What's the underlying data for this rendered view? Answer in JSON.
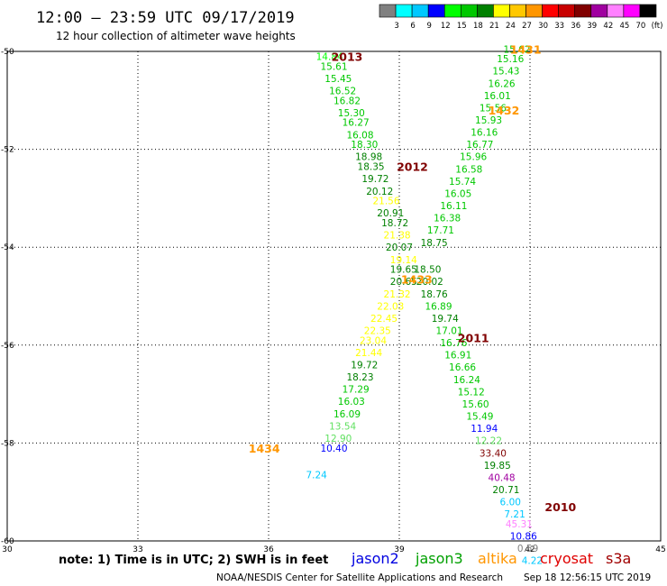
{
  "title": "12:00 – 23:59 UTC 09/17/2019",
  "subtitle": "12 hour collection of altimeter wave heights",
  "scale": {
    "labels": [
      "3",
      "6",
      "9",
      "12",
      "15",
      "18",
      "21",
      "24",
      "27",
      "30",
      "33",
      "36",
      "39",
      "42",
      "45",
      "70",
      "(ft)"
    ],
    "colors": [
      "#808080",
      "#00ffff",
      "#00c8ff",
      "#0000ff",
      "#00ff00",
      "#00c800",
      "#008000",
      "#ffff00",
      "#ffc800",
      "#ff9600",
      "#ff0000",
      "#c80000",
      "#800000",
      "#a000a0",
      "#ff80ff",
      "#ff00ff",
      "#000000"
    ]
  },
  "footer": {
    "note": "note: 1) Time is in UTC; 2) SWH is in feet",
    "credit": "NOAA/NESDIS Center for Satellite Applications and Research",
    "timestamp": "Sep 18 12:56:15 UTC 2019"
  },
  "satellites": [
    {
      "name": "jason2",
      "color": "#0000e0"
    },
    {
      "name": "jason3",
      "color": "#00a000"
    },
    {
      "name": "altika",
      "color": "#ff9600"
    },
    {
      "name": "cryosat",
      "color": "#e00000"
    },
    {
      "name": "s3a",
      "color": "#a00000"
    }
  ],
  "chart_data": {
    "type": "scatter",
    "xlim": [
      30,
      45
    ],
    "ylim": [
      -60,
      -50
    ],
    "x_ticks": [
      30,
      33,
      36,
      39,
      42,
      45
    ],
    "y_ticks": [
      -50,
      -52,
      -54,
      -56,
      -58,
      -60
    ],
    "x_tick_labels": [
      "30",
      "33",
      "36",
      "39",
      "42",
      "45"
    ],
    "y_tick_labels": [
      "-50",
      "-52",
      "-54",
      "-56",
      "-58",
      "-60"
    ],
    "grid": true,
    "time_labels": [
      {
        "text": "2013",
        "lon": 37.8,
        "lat": -50.1,
        "color": "#800000"
      },
      {
        "text": "2012",
        "lon": 39.3,
        "lat": -52.35,
        "color": "#800000"
      },
      {
        "text": "2011",
        "lon": 40.7,
        "lat": -55.85,
        "color": "#800000"
      },
      {
        "text": "2010",
        "lon": 42.7,
        "lat": -59.3,
        "color": "#800000"
      },
      {
        "text": "1431",
        "lon": 41.9,
        "lat": -49.95,
        "color": "#ff9600"
      },
      {
        "text": "1432",
        "lon": 41.4,
        "lat": -51.2,
        "color": "#ff9600"
      },
      {
        "text": "1433",
        "lon": 39.4,
        "lat": -54.65,
        "color": "#ff9600"
      },
      {
        "text": "1434",
        "lon": 35.9,
        "lat": -58.1,
        "color": "#ff9600"
      }
    ],
    "points": [
      {
        "lon": 37.4,
        "lat": -50.1,
        "swh": "14.84",
        "color": "#00ff00"
      },
      {
        "lon": 37.5,
        "lat": -50.3,
        "swh": "15.61",
        "color": "#00c800"
      },
      {
        "lon": 37.6,
        "lat": -50.55,
        "swh": "15.45",
        "color": "#00c800"
      },
      {
        "lon": 37.7,
        "lat": -50.8,
        "swh": "16.52",
        "color": "#00c800"
      },
      {
        "lon": 37.8,
        "lat": -51.0,
        "swh": "16.82",
        "color": "#00c800"
      },
      {
        "lon": 37.9,
        "lat": -51.25,
        "swh": "15.30",
        "color": "#00c800"
      },
      {
        "lon": 38.0,
        "lat": -51.45,
        "swh": "16.27",
        "color": "#00c800"
      },
      {
        "lon": 38.1,
        "lat": -51.7,
        "swh": "16.08",
        "color": "#00c800"
      },
      {
        "lon": 38.2,
        "lat": -51.9,
        "swh": "18.30",
        "color": "#00c800"
      },
      {
        "lon": 38.3,
        "lat": -52.15,
        "swh": "18.98",
        "color": "#008000"
      },
      {
        "lon": 38.35,
        "lat": -52.35,
        "swh": "18.35",
        "color": "#008000"
      },
      {
        "lon": 38.45,
        "lat": -52.6,
        "swh": "19.72",
        "color": "#008000"
      },
      {
        "lon": 38.55,
        "lat": -52.85,
        "swh": "20.12",
        "color": "#008000"
      },
      {
        "lon": 38.7,
        "lat": -53.05,
        "swh": "21.56",
        "color": "#ffff00"
      },
      {
        "lon": 38.8,
        "lat": -53.3,
        "swh": "20.91",
        "color": "#008000"
      },
      {
        "lon": 38.9,
        "lat": -53.5,
        "swh": "18.72",
        "color": "#008000"
      },
      {
        "lon": 38.95,
        "lat": -53.75,
        "swh": "21.38",
        "color": "#ffff00"
      },
      {
        "lon": 39.0,
        "lat": -54.0,
        "swh": "20.07",
        "color": "#008000"
      },
      {
        "lon": 39.1,
        "lat": -54.25,
        "swh": "19.14",
        "color": "#ffff00"
      },
      {
        "lon": 39.1,
        "lat": -54.45,
        "swh": "19.65",
        "color": "#008000"
      },
      {
        "lon": 39.1,
        "lat": -54.7,
        "swh": "20.65",
        "color": "#008000"
      },
      {
        "lon": 38.95,
        "lat": -54.95,
        "swh": "21.32",
        "color": "#ffff00"
      },
      {
        "lon": 38.8,
        "lat": -55.2,
        "swh": "22.03",
        "color": "#ffff00"
      },
      {
        "lon": 38.65,
        "lat": -55.45,
        "swh": "22.45",
        "color": "#ffff00"
      },
      {
        "lon": 38.5,
        "lat": -55.7,
        "swh": "22.35",
        "color": "#ffff00"
      },
      {
        "lon": 38.4,
        "lat": -55.9,
        "swh": "23.04",
        "color": "#ffff00"
      },
      {
        "lon": 38.3,
        "lat": -56.15,
        "swh": "21.44",
        "color": "#ffff00"
      },
      {
        "lon": 38.2,
        "lat": -56.4,
        "swh": "19.72",
        "color": "#008000"
      },
      {
        "lon": 38.1,
        "lat": -56.65,
        "swh": "18.23",
        "color": "#008000"
      },
      {
        "lon": 38.0,
        "lat": -56.9,
        "swh": "17.29",
        "color": "#00c800"
      },
      {
        "lon": 37.9,
        "lat": -57.15,
        "swh": "16.03",
        "color": "#00c800"
      },
      {
        "lon": 37.8,
        "lat": -57.4,
        "swh": "16.09",
        "color": "#00c800"
      },
      {
        "lon": 37.7,
        "lat": -57.65,
        "swh": "13.54",
        "color": "#60e060"
      },
      {
        "lon": 37.6,
        "lat": -57.9,
        "swh": "12.90",
        "color": "#60e060"
      },
      {
        "lon": 37.5,
        "lat": -58.1,
        "swh": "10.40",
        "color": "#0000ff"
      },
      {
        "lon": 37.1,
        "lat": -58.65,
        "swh": "7.24",
        "color": "#00c8ff"
      },
      {
        "lon": 41.7,
        "lat": -49.95,
        "swh": "15.62",
        "color": "#00c800"
      },
      {
        "lon": 41.55,
        "lat": -50.15,
        "swh": "15.16",
        "color": "#00c800"
      },
      {
        "lon": 41.45,
        "lat": -50.4,
        "swh": "15.43",
        "color": "#00c800"
      },
      {
        "lon": 41.35,
        "lat": -50.65,
        "swh": "16.26",
        "color": "#00c800"
      },
      {
        "lon": 41.25,
        "lat": -50.9,
        "swh": "16.01",
        "color": "#00c800"
      },
      {
        "lon": 41.15,
        "lat": -51.15,
        "swh": "15.56",
        "color": "#00c800"
      },
      {
        "lon": 41.05,
        "lat": -51.4,
        "swh": "15.93",
        "color": "#00c800"
      },
      {
        "lon": 40.95,
        "lat": -51.65,
        "swh": "16.16",
        "color": "#00c800"
      },
      {
        "lon": 40.85,
        "lat": -51.9,
        "swh": "16.77",
        "color": "#00c800"
      },
      {
        "lon": 40.7,
        "lat": -52.15,
        "swh": "15.96",
        "color": "#00c800"
      },
      {
        "lon": 40.6,
        "lat": -52.4,
        "swh": "16.58",
        "color": "#00c800"
      },
      {
        "lon": 40.45,
        "lat": -52.65,
        "swh": "15.74",
        "color": "#00c800"
      },
      {
        "lon": 40.35,
        "lat": -52.9,
        "swh": "16.05",
        "color": "#00c800"
      },
      {
        "lon": 40.25,
        "lat": -53.15,
        "swh": "16.11",
        "color": "#00c800"
      },
      {
        "lon": 40.1,
        "lat": -53.4,
        "swh": "16.38",
        "color": "#00c800"
      },
      {
        "lon": 39.95,
        "lat": -53.65,
        "swh": "17.71",
        "color": "#00c800"
      },
      {
        "lon": 39.8,
        "lat": -53.9,
        "swh": "18.75",
        "color": "#008000"
      },
      {
        "lon": 39.65,
        "lat": -54.45,
        "swh": "18.50",
        "color": "#008000"
      },
      {
        "lon": 39.7,
        "lat": -54.7,
        "swh": "20.02",
        "color": "#008000"
      },
      {
        "lon": 39.8,
        "lat": -54.95,
        "swh": "18.76",
        "color": "#008000"
      },
      {
        "lon": 39.9,
        "lat": -55.2,
        "swh": "16.89",
        "color": "#00c800"
      },
      {
        "lon": 40.05,
        "lat": -55.45,
        "swh": "19.74",
        "color": "#008000"
      },
      {
        "lon": 40.15,
        "lat": -55.7,
        "swh": "17.01",
        "color": "#00c800"
      },
      {
        "lon": 40.25,
        "lat": -55.95,
        "swh": "16.76",
        "color": "#00c800"
      },
      {
        "lon": 40.35,
        "lat": -56.2,
        "swh": "16.91",
        "color": "#00c800"
      },
      {
        "lon": 40.45,
        "lat": -56.45,
        "swh": "16.66",
        "color": "#00c800"
      },
      {
        "lon": 40.55,
        "lat": -56.7,
        "swh": "16.24",
        "color": "#00c800"
      },
      {
        "lon": 40.65,
        "lat": -56.95,
        "swh": "15.12",
        "color": "#00c800"
      },
      {
        "lon": 40.75,
        "lat": -57.2,
        "swh": "15.60",
        "color": "#00c800"
      },
      {
        "lon": 40.85,
        "lat": -57.45,
        "swh": "15.49",
        "color": "#00c800"
      },
      {
        "lon": 40.95,
        "lat": -57.7,
        "swh": "11.94",
        "color": "#0000ff"
      },
      {
        "lon": 41.05,
        "lat": -57.95,
        "swh": "12.22",
        "color": "#60e060"
      },
      {
        "lon": 41.15,
        "lat": -58.2,
        "swh": "33.40",
        "color": "#800000"
      },
      {
        "lon": 41.25,
        "lat": -58.45,
        "swh": "19.85",
        "color": "#008000"
      },
      {
        "lon": 41.35,
        "lat": -58.7,
        "swh": "40.48",
        "color": "#a000a0"
      },
      {
        "lon": 41.45,
        "lat": -58.95,
        "swh": "20.71",
        "color": "#008000"
      },
      {
        "lon": 41.55,
        "lat": -59.2,
        "swh": "6.00",
        "color": "#00c8ff"
      },
      {
        "lon": 41.65,
        "lat": -59.45,
        "swh": "7.21",
        "color": "#00c8ff"
      },
      {
        "lon": 41.75,
        "lat": -59.65,
        "swh": "45.31",
        "color": "#ff80ff"
      },
      {
        "lon": 41.85,
        "lat": -59.9,
        "swh": "10.86",
        "color": "#0000ff"
      },
      {
        "lon": 41.95,
        "lat": -60.15,
        "swh": "0.59",
        "color": "#808080"
      },
      {
        "lon": 42.05,
        "lat": -60.4,
        "swh": "4.22",
        "color": "#00c8ff"
      }
    ]
  }
}
